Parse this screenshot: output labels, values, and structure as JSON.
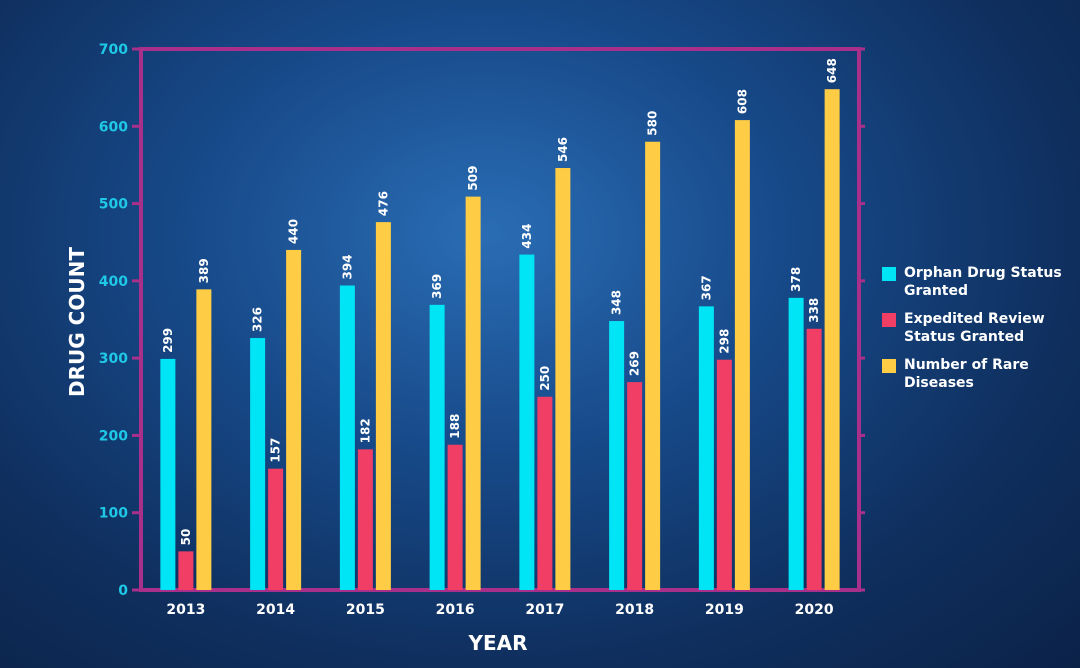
{
  "chart_data": {
    "type": "bar",
    "xlabel": "YEAR",
    "ylabel": "DRUG COUNT",
    "ylim": [
      0,
      700
    ],
    "yticks": [
      0,
      100,
      200,
      300,
      400,
      500,
      600,
      700
    ],
    "categories": [
      "2013",
      "2014",
      "2015",
      "2016",
      "2017",
      "2018",
      "2019",
      "2020"
    ],
    "series": [
      {
        "name": "Orphan Drug Status Granted",
        "color": "#00e5f5",
        "values": [
          299,
          326,
          394,
          369,
          434,
          348,
          367,
          378
        ]
      },
      {
        "name": "Expedited Review Status Granted",
        "color": "#f03e64",
        "values": [
          50,
          157,
          182,
          188,
          250,
          269,
          298,
          338
        ]
      },
      {
        "name": "Number of Rare Diseases",
        "color": "#ffcd45",
        "values": [
          389,
          440,
          476,
          509,
          546,
          580,
          608,
          648
        ]
      }
    ],
    "legend_position": "right",
    "grid": false
  },
  "colors": {
    "frame": "#a8308a",
    "tick_text": "#1ec8e6"
  }
}
